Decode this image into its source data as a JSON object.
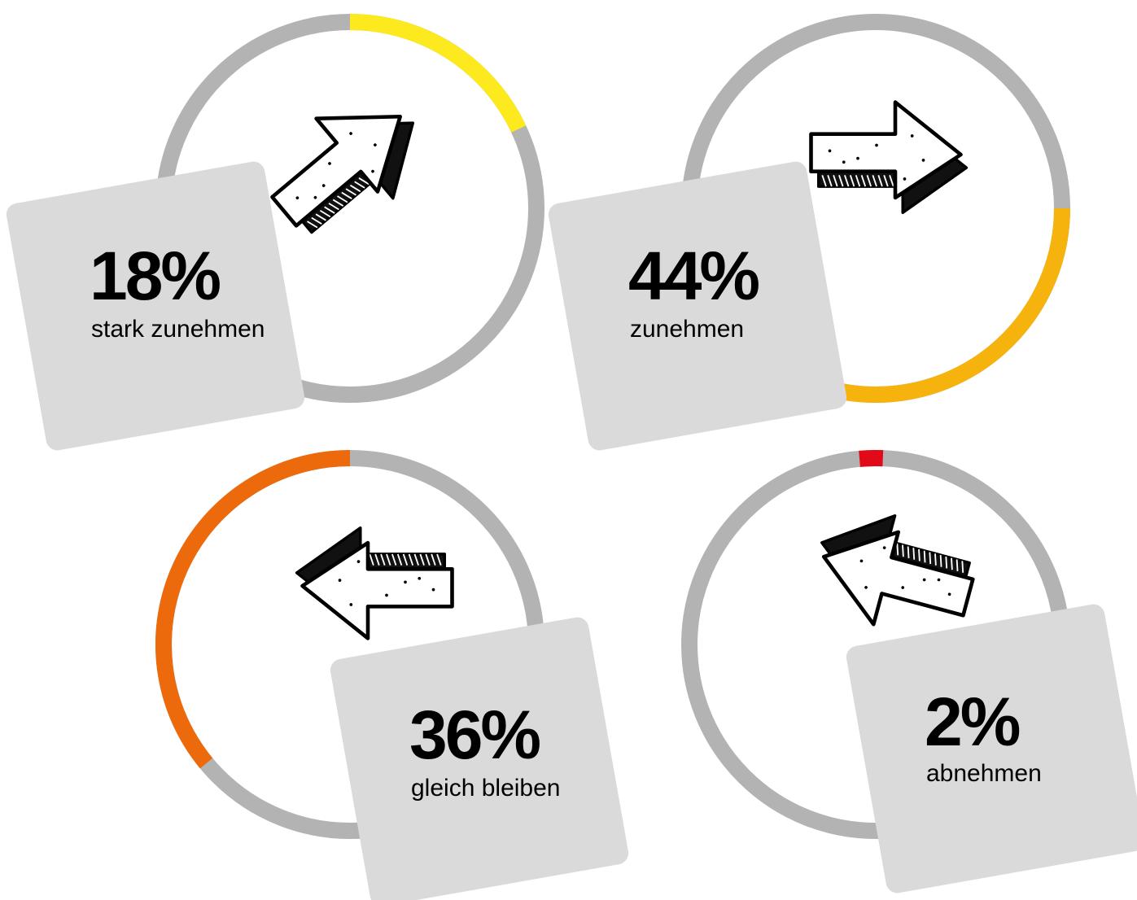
{
  "chart_data": [
    {
      "type": "pie",
      "value": 18,
      "unit": "%",
      "value_label": "18%",
      "category": "stark zunehmen",
      "color": "#fcea1e",
      "track_color": "#b3b3b3",
      "icon": "arrow-up-right-icon"
    },
    {
      "type": "pie",
      "value": 44,
      "unit": "%",
      "value_label": "44%",
      "category": "zunehmen",
      "color": "#f7b30d",
      "track_color": "#b3b3b3",
      "icon": "arrow-right-icon"
    },
    {
      "type": "pie",
      "value": 36,
      "unit": "%",
      "value_label": "36%",
      "category": "gleich bleiben",
      "color": "#ec6a0c",
      "track_color": "#b3b3b3",
      "icon": "arrow-left-icon"
    },
    {
      "type": "pie",
      "value": 2,
      "unit": "%",
      "value_label": "2%",
      "category": "abnehmen",
      "color": "#e20a17",
      "track_color": "#b3b3b3",
      "icon": "arrow-left-down-icon"
    }
  ],
  "colors": {
    "card": "#dadada",
    "text": "#000000"
  }
}
